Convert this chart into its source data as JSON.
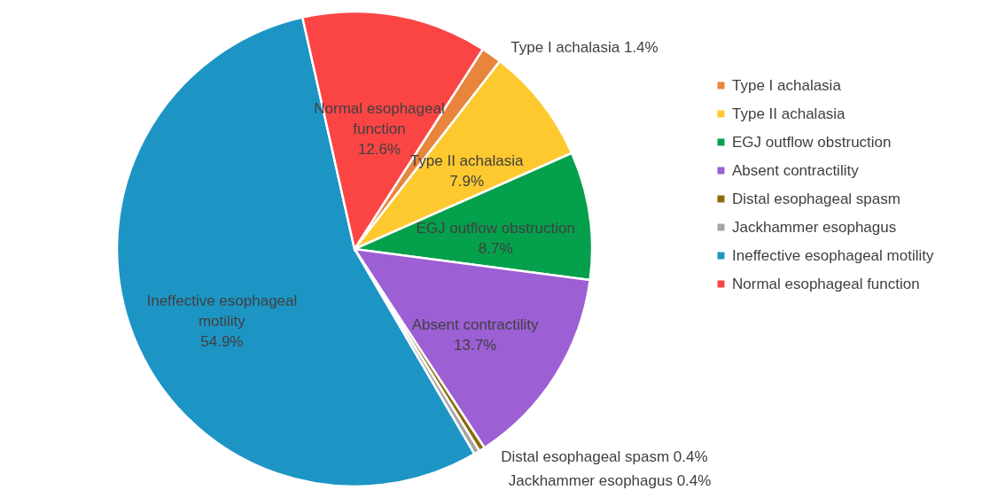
{
  "chart_data": {
    "type": "pie",
    "categories": [
      "Type I achalasia",
      "Type II achalasia",
      "EGJ outflow obstruction",
      "Absent contractility",
      "Distal esophageal spasm",
      "Jackhammer esophagus",
      "Ineffective esophageal motility",
      "Normal esophageal function"
    ],
    "values": [
      1.4,
      7.9,
      8.7,
      13.7,
      0.4,
      0.4,
      54.9,
      12.6
    ],
    "value_labels": [
      "1.4%",
      "7.9%",
      "8.7%",
      "13.7%",
      "0.4%",
      "0.4%",
      "54.9%",
      "12.6%"
    ],
    "colors": [
      "#e8853d",
      "#fdc92f",
      "#05a04c",
      "#9c5fd4",
      "#8c6a08",
      "#a5a5a5",
      "#1d95c4",
      "#fb4545"
    ],
    "legend": "right"
  }
}
